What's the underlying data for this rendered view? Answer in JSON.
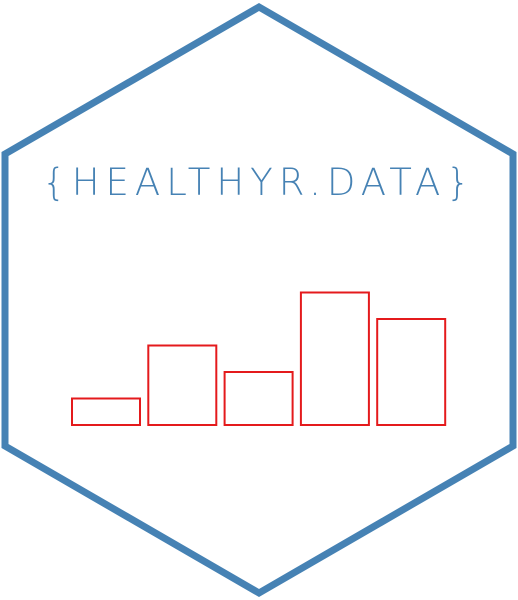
{
  "logo": {
    "text": "{HEALTHYR.DATA}",
    "border_color": "#4682B4",
    "text_color": "#4682B4",
    "bar_color": "#E41A1C",
    "background": "#FFFFFF"
  },
  "bars": {
    "values": [
      1,
      3,
      2,
      5,
      4
    ]
  }
}
